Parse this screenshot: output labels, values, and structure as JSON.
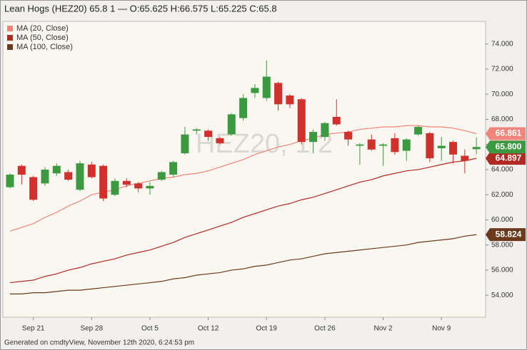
{
  "chart_data": {
    "type": "candlestick",
    "title": "Lean Hogs (HEZ20) 65.8 1 — O:65.625 H:66.575 L:65.225 C:65.8",
    "watermark": "HEZ20, 1 2",
    "footer": "Generated on cmdtyView, November 12th 2020, 6:24:53 pm",
    "categories": [
      null,
      null,
      "Sep 21",
      null,
      null,
      null,
      null,
      "Sep 28",
      null,
      null,
      null,
      null,
      "Oct 5",
      null,
      null,
      null,
      null,
      "Oct 12",
      null,
      null,
      null,
      null,
      "Oct 19",
      null,
      null,
      null,
      null,
      "Oct 26",
      null,
      null,
      null,
      null,
      "Nov 2",
      null,
      null,
      null,
      null,
      "Nov 9",
      null,
      null,
      null
    ],
    "candles": {
      "up_color": "#3b9a3f",
      "down_color": "#d0312d",
      "open": [
        62.6,
        64.3,
        63.4,
        62.9,
        63.7,
        63.8,
        62.4,
        64.4,
        64.3,
        62.0,
        63.1,
        62.9,
        62.5,
        63.2,
        63.6,
        65.3,
        67.1,
        67.1,
        66.5,
        66.8,
        68.1,
        70.1,
        69.7,
        70.9,
        69.9,
        69.6,
        66.2,
        66.6,
        68.2,
        67.0,
        65.9,
        66.4,
        65.9,
        66.5,
        65.5,
        66.8,
        66.9,
        65.7,
        66.2,
        65.1,
        65.625
      ],
      "high": [
        63.7,
        64.4,
        63.5,
        64.2,
        64.5,
        64.0,
        64.7,
        64.6,
        64.4,
        63.3,
        63.3,
        63.0,
        63.0,
        63.9,
        64.7,
        67.4,
        67.3,
        67.2,
        66.6,
        68.5,
        70.0,
        70.8,
        72.7,
        71.0,
        70.0,
        69.7,
        67.2,
        67.8,
        69.6,
        67.1,
        66.1,
        66.8,
        66.1,
        66.9,
        66.5,
        67.5,
        67.0,
        66.6,
        66.3,
        65.6,
        66.575
      ],
      "low": [
        62.5,
        62.8,
        61.5,
        62.7,
        63.5,
        63.1,
        62.3,
        63.3,
        61.5,
        61.9,
        62.6,
        62.2,
        62.0,
        63.1,
        63.4,
        65.2,
        66.8,
        66.3,
        66.0,
        66.7,
        67.9,
        69.7,
        69.5,
        68.7,
        68.9,
        66.0,
        65.3,
        66.3,
        67.5,
        65.9,
        64.4,
        65.5,
        64.3,
        65.2,
        64.7,
        66.7,
        64.6,
        64.7,
        64.5,
        63.7,
        65.225
      ],
      "close": [
        63.6,
        63.6,
        61.6,
        64.0,
        64.3,
        63.2,
        64.5,
        63.4,
        61.7,
        63.1,
        62.8,
        62.5,
        62.7,
        63.8,
        64.6,
        66.8,
        67.2,
        66.6,
        66.1,
        68.4,
        69.7,
        70.5,
        71.4,
        69.2,
        69.2,
        66.2,
        67.0,
        67.7,
        67.6,
        66.4,
        66.0,
        65.6,
        66.0,
        65.4,
        66.4,
        67.4,
        64.9,
        65.9,
        65.2,
        64.7,
        65.8
      ],
      "last_label": {
        "value": 65.8,
        "label": "65.800"
      }
    },
    "series": [
      {
        "name": "MA (20, Close)",
        "color": "#f0857b",
        "last_label": "66.861",
        "values": [
          59.1,
          59.4,
          59.7,
          60.2,
          60.6,
          61.1,
          61.5,
          62.0,
          62.2,
          62.4,
          62.7,
          62.9,
          63.1,
          63.3,
          63.4,
          63.6,
          63.7,
          63.9,
          64.2,
          64.5,
          64.8,
          65.2,
          65.5,
          65.8,
          66.0,
          66.3,
          66.5,
          66.8,
          66.9,
          67.0,
          67.2,
          67.3,
          67.4,
          67.4,
          67.5,
          67.5,
          67.4,
          67.4,
          67.3,
          67.1,
          66.861
        ]
      },
      {
        "name": "MA (50, Close)",
        "color": "#b02a24",
        "last_label": "64.897",
        "values": [
          55.0,
          55.1,
          55.2,
          55.5,
          55.7,
          56.0,
          56.2,
          56.5,
          56.7,
          56.9,
          57.2,
          57.4,
          57.6,
          57.9,
          58.2,
          58.6,
          58.9,
          59.2,
          59.5,
          59.8,
          60.2,
          60.5,
          60.8,
          61.1,
          61.3,
          61.6,
          61.8,
          62.1,
          62.4,
          62.7,
          63.0,
          63.2,
          63.5,
          63.7,
          63.9,
          64.0,
          64.2,
          64.4,
          64.6,
          64.7,
          64.897
        ]
      },
      {
        "name": "MA (100, Close)",
        "color": "#6b3a1c",
        "last_label": "58.824",
        "values": [
          54.1,
          54.1,
          54.2,
          54.2,
          54.3,
          54.4,
          54.4,
          54.5,
          54.6,
          54.7,
          54.8,
          54.9,
          55.0,
          55.1,
          55.3,
          55.4,
          55.6,
          55.7,
          55.8,
          56.0,
          56.1,
          56.3,
          56.4,
          56.6,
          56.8,
          56.9,
          57.1,
          57.3,
          57.4,
          57.5,
          57.6,
          57.7,
          57.8,
          57.9,
          58.0,
          58.2,
          58.3,
          58.4,
          58.5,
          58.7,
          58.824
        ]
      }
    ],
    "ylim": [
      52.25,
      75.8
    ],
    "yticks": [
      {
        "value": 54,
        "label": "54.000"
      },
      {
        "value": 56,
        "label": "56.000"
      },
      {
        "value": 58,
        "label": "58.000"
      },
      {
        "value": 60,
        "label": "60.000"
      },
      {
        "value": 62,
        "label": "62.000"
      },
      {
        "value": 64,
        "label": "64.000"
      },
      {
        "value": 66,
        "label": "66.000"
      },
      {
        "value": 68,
        "label": "68.000"
      },
      {
        "value": 70,
        "label": "70.000"
      },
      {
        "value": 72,
        "label": "72.000"
      },
      {
        "value": 74,
        "label": "74.000"
      }
    ],
    "legend": "top-left"
  }
}
